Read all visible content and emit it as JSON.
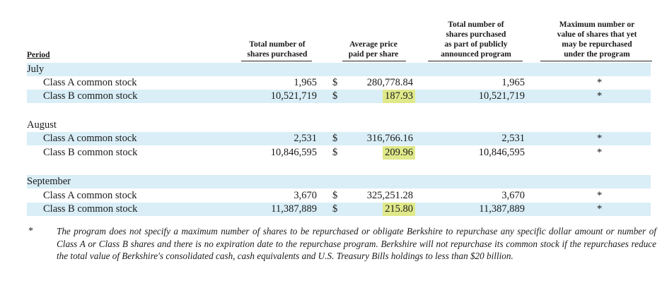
{
  "headers": {
    "period": "Period",
    "total_shares": [
      "Total number of",
      "shares purchased"
    ],
    "avg_price": [
      "Average price",
      "paid per share"
    ],
    "program_shares": [
      "Total number of",
      "shares purchased",
      "as part of publicly",
      "announced program"
    ],
    "max_value": [
      "Maximum number or",
      "value of shares that yet",
      "may be repurchased",
      "under the program"
    ]
  },
  "months": [
    {
      "name": "July",
      "rows": [
        {
          "label": "Class A common stock",
          "shares": "1,965",
          "currency": "$",
          "price": "280,778.84",
          "program": "1,965",
          "max": "*"
        },
        {
          "label": "Class B common stock",
          "shares": "10,521,719",
          "currency": "$",
          "price": "187.93",
          "program": "10,521,719",
          "max": "*"
        }
      ]
    },
    {
      "name": "August",
      "rows": [
        {
          "label": "Class A common stock",
          "shares": "2,531",
          "currency": "$",
          "price": "316,766.16",
          "program": "2,531",
          "max": "*"
        },
        {
          "label": "Class B common stock",
          "shares": "10,846,595",
          "currency": "$",
          "price": "209.96",
          "program": "10,846,595",
          "max": "*"
        }
      ]
    },
    {
      "name": "September",
      "rows": [
        {
          "label": "Class A common stock",
          "shares": "3,670",
          "currency": "$",
          "price": "325,251.28",
          "program": "3,670",
          "max": "*"
        },
        {
          "label": "Class B common stock",
          "shares": "11,387,889",
          "currency": "$",
          "price": "215.80",
          "program": "11,387,889",
          "max": "*"
        }
      ]
    }
  ],
  "footnote": {
    "marker": "*",
    "text": "The program does not specify a maximum number of shares to be repurchased or obligate Berkshire to repurchase any specific dollar amount or number of Class A or Class B shares and there is no expiration date to the repurchase program. Berkshire will not repurchase its common stock if the repurchases reduce the total value of Berkshire's consolidated cash, cash equivalents and U.S. Treasury Bills holdings to less than $20 billion."
  },
  "colors": {
    "row_shade": "#d9eef7",
    "highlight": "#dfe98a"
  }
}
